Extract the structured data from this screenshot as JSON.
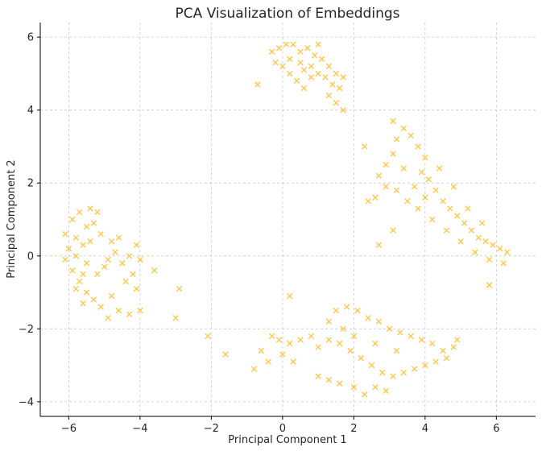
{
  "chart_data": {
    "type": "scatter",
    "title": "PCA Visualization of Embeddings",
    "xlabel": "Principal Component 1",
    "ylabel": "Principal Component 2",
    "xlim": [
      -6.8,
      7.1
    ],
    "ylim": [
      -4.4,
      6.4
    ],
    "xticks": [
      -6,
      -4,
      -2,
      0,
      2,
      4,
      6
    ],
    "yticks": [
      -4,
      -2,
      0,
      2,
      4,
      6
    ],
    "xtick_labels": [
      "−6",
      "−4",
      "−2",
      "0",
      "2",
      "4",
      "6"
    ],
    "ytick_labels": [
      "−4",
      "−2",
      "0",
      "2",
      "4",
      "6"
    ],
    "grid": true,
    "marker": "x",
    "color": "#FFB000",
    "series": [
      {
        "points": [
          [
            -5.6,
            0.3
          ],
          [
            -5.8,
            0.5
          ],
          [
            -5.5,
            0.8
          ],
          [
            -5.9,
            1.0
          ],
          [
            -5.7,
            1.2
          ],
          [
            -5.4,
            1.3
          ],
          [
            -5.2,
            1.2
          ],
          [
            -6.0,
            0.2
          ],
          [
            -6.1,
            -0.1
          ],
          [
            -5.9,
            -0.4
          ],
          [
            -5.7,
            -0.7
          ],
          [
            -5.5,
            -1.0
          ],
          [
            -5.3,
            -1.2
          ],
          [
            -5.6,
            -1.3
          ],
          [
            -5.2,
            -0.5
          ],
          [
            -5.0,
            -0.3
          ],
          [
            -4.9,
            -0.1
          ],
          [
            -4.7,
            0.1
          ],
          [
            -4.5,
            -0.2
          ],
          [
            -4.3,
            0.0
          ],
          [
            -4.1,
            0.3
          ],
          [
            -4.0,
            -0.1
          ],
          [
            -4.2,
            -0.5
          ],
          [
            -4.4,
            -0.7
          ],
          [
            -4.1,
            -0.9
          ],
          [
            -3.6,
            -0.4
          ],
          [
            -4.8,
            -1.1
          ],
          [
            -4.6,
            -1.5
          ],
          [
            -4.3,
            -1.6
          ],
          [
            -4.9,
            -1.7
          ],
          [
            -4.0,
            -1.5
          ],
          [
            -5.1,
            -1.4
          ],
          [
            -2.9,
            -0.9
          ],
          [
            -3.0,
            -1.7
          ],
          [
            -5.8,
            -0.9
          ],
          [
            -5.4,
            0.4
          ],
          [
            -5.5,
            -0.2
          ],
          [
            -5.8,
            0.0
          ],
          [
            -6.1,
            0.6
          ],
          [
            -5.3,
            0.9
          ],
          [
            -5.1,
            0.6
          ],
          [
            -4.8,
            0.4
          ],
          [
            -4.6,
            0.5
          ],
          [
            -5.6,
            -0.5
          ]
        ]
      },
      {
        "points": [
          [
            -0.3,
            5.6
          ],
          [
            -0.1,
            5.7
          ],
          [
            0.1,
            5.8
          ],
          [
            0.3,
            5.8
          ],
          [
            0.5,
            5.6
          ],
          [
            0.7,
            5.7
          ],
          [
            0.9,
            5.5
          ],
          [
            1.1,
            5.4
          ],
          [
            1.3,
            5.2
          ],
          [
            1.5,
            5.0
          ],
          [
            1.7,
            4.9
          ],
          [
            1.6,
            4.6
          ],
          [
            1.4,
            4.7
          ],
          [
            1.2,
            4.9
          ],
          [
            0.8,
            4.9
          ],
          [
            0.6,
            4.6
          ],
          [
            0.4,
            4.8
          ],
          [
            0.2,
            5.0
          ],
          [
            0.0,
            5.2
          ],
          [
            0.2,
            5.4
          ],
          [
            0.5,
            5.3
          ],
          [
            0.8,
            5.2
          ],
          [
            1.0,
            5.0
          ],
          [
            1.5,
            4.2
          ],
          [
            1.7,
            4.0
          ],
          [
            1.3,
            4.4
          ],
          [
            -0.7,
            4.7
          ],
          [
            -0.2,
            5.3
          ],
          [
            1.0,
            5.8
          ],
          [
            0.6,
            5.1
          ]
        ]
      },
      {
        "points": [
          [
            2.7,
            2.2
          ],
          [
            2.9,
            2.5
          ],
          [
            3.1,
            2.8
          ],
          [
            3.2,
            3.2
          ],
          [
            3.4,
            3.5
          ],
          [
            3.1,
            3.7
          ],
          [
            3.6,
            3.3
          ],
          [
            3.8,
            3.0
          ],
          [
            4.0,
            2.7
          ],
          [
            3.9,
            2.3
          ],
          [
            4.1,
            2.1
          ],
          [
            4.3,
            1.8
          ],
          [
            4.5,
            1.5
          ],
          [
            4.7,
            1.3
          ],
          [
            4.9,
            1.1
          ],
          [
            5.1,
            0.9
          ],
          [
            5.3,
            0.7
          ],
          [
            5.5,
            0.5
          ],
          [
            5.7,
            0.4
          ],
          [
            5.9,
            0.3
          ],
          [
            6.1,
            0.2
          ],
          [
            6.3,
            0.1
          ],
          [
            6.2,
            -0.2
          ],
          [
            5.8,
            -0.1
          ],
          [
            5.4,
            0.1
          ],
          [
            5.0,
            0.4
          ],
          [
            4.6,
            0.7
          ],
          [
            4.2,
            1.0
          ],
          [
            3.8,
            1.3
          ],
          [
            3.5,
            1.5
          ],
          [
            3.2,
            1.8
          ],
          [
            2.9,
            1.9
          ],
          [
            2.6,
            1.6
          ],
          [
            2.4,
            1.5
          ],
          [
            2.7,
            0.3
          ],
          [
            3.1,
            0.7
          ],
          [
            2.3,
            3.0
          ],
          [
            5.8,
            -0.8
          ],
          [
            4.4,
            2.4
          ],
          [
            3.7,
            1.9
          ],
          [
            4.8,
            1.9
          ],
          [
            5.2,
            1.3
          ],
          [
            5.6,
            0.9
          ],
          [
            4.0,
            1.6
          ],
          [
            3.4,
            2.4
          ]
        ]
      },
      {
        "points": [
          [
            1.3,
            -1.8
          ],
          [
            1.5,
            -1.5
          ],
          [
            1.8,
            -1.4
          ],
          [
            2.1,
            -1.5
          ],
          [
            2.4,
            -1.7
          ],
          [
            2.7,
            -1.8
          ],
          [
            3.0,
            -2.0
          ],
          [
            3.3,
            -2.1
          ],
          [
            3.6,
            -2.2
          ],
          [
            3.9,
            -2.3
          ],
          [
            4.2,
            -2.4
          ],
          [
            4.5,
            -2.6
          ],
          [
            4.8,
            -2.5
          ],
          [
            4.9,
            -2.3
          ],
          [
            4.6,
            -2.8
          ],
          [
            4.3,
            -2.9
          ],
          [
            4.0,
            -3.0
          ],
          [
            3.7,
            -3.1
          ],
          [
            3.4,
            -3.2
          ],
          [
            3.1,
            -3.3
          ],
          [
            2.8,
            -3.2
          ],
          [
            2.5,
            -3.0
          ],
          [
            2.2,
            -2.8
          ],
          [
            1.9,
            -2.6
          ],
          [
            1.6,
            -2.4
          ],
          [
            1.3,
            -2.3
          ],
          [
            1.0,
            -2.5
          ],
          [
            0.8,
            -2.2
          ],
          [
            0.5,
            -2.3
          ],
          [
            0.2,
            -2.4
          ],
          [
            -0.1,
            -2.3
          ],
          [
            -0.3,
            -2.2
          ],
          [
            -0.6,
            -2.6
          ],
          [
            -0.4,
            -2.9
          ],
          [
            -0.8,
            -3.1
          ],
          [
            0.0,
            -2.7
          ],
          [
            0.3,
            -2.9
          ],
          [
            1.0,
            -3.3
          ],
          [
            1.3,
            -3.4
          ],
          [
            1.6,
            -3.5
          ],
          [
            2.0,
            -3.6
          ],
          [
            2.3,
            -3.8
          ],
          [
            2.6,
            -3.6
          ],
          [
            2.9,
            -3.7
          ],
          [
            0.2,
            -1.1
          ],
          [
            -2.1,
            -2.2
          ],
          [
            -1.6,
            -2.7
          ],
          [
            2.0,
            -2.2
          ],
          [
            2.6,
            -2.4
          ],
          [
            3.2,
            -2.6
          ],
          [
            1.7,
            -2.0
          ]
        ]
      }
    ]
  }
}
